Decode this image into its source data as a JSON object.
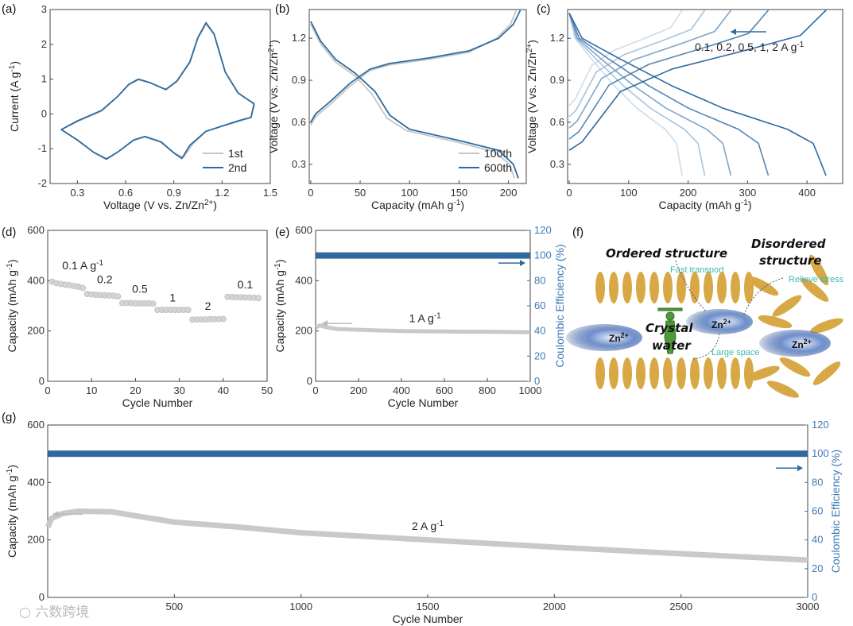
{
  "panel_labels": [
    "(a)",
    "(b)",
    "(c)",
    "(d)",
    "(e)",
    "(f)",
    "(g)"
  ],
  "watermark": "六数跨境",
  "colors": {
    "blue": "#2e6a9e",
    "gray": "#c6c6c6",
    "right_axis": "#3d7ab5",
    "rod": "#d8a846"
  },
  "chart_data": [
    {
      "id": "a",
      "type": "line",
      "title": "",
      "xlabel": {
        "main": "Voltage (V vs. Zn/Zn",
        "sup": "2+",
        "end": ")"
      },
      "ylabel": {
        "main": "Current (A g",
        "sup": "-1",
        "end": ")"
      },
      "xlim": [
        0.13,
        1.5
      ],
      "ylim": [
        -2,
        3
      ],
      "xticks": [
        0.3,
        0.6,
        0.9,
        1.2,
        1.5
      ],
      "xticklabels": [
        "0.3",
        "0.6",
        "0.9",
        "1.2",
        "1.5"
      ],
      "yticks": [
        -2,
        -1,
        0,
        1,
        2,
        3
      ],
      "yticklabels": [
        "-2",
        "-1",
        "0",
        "1",
        "2",
        "3"
      ],
      "legend": "bottom-right",
      "series": [
        {
          "name": "1st",
          "color": "#c6c6c6",
          "points": [
            [
              1.4,
              0.25
            ],
            [
              1.38,
              -0.1
            ],
            [
              1.3,
              -0.22
            ],
            [
              1.2,
              -0.35
            ],
            [
              1.1,
              -0.5
            ],
            [
              1.02,
              -0.85
            ],
            [
              0.96,
              -1.25
            ],
            [
              0.9,
              -1.12
            ],
            [
              0.82,
              -0.82
            ],
            [
              0.72,
              -0.66
            ],
            [
              0.65,
              -0.76
            ],
            [
              0.55,
              -1.1
            ],
            [
              0.48,
              -1.28
            ],
            [
              0.4,
              -1.1
            ],
            [
              0.3,
              -0.75
            ],
            [
              0.2,
              -0.45
            ],
            [
              0.3,
              -0.22
            ],
            [
              0.45,
              0.08
            ],
            [
              0.55,
              0.5
            ],
            [
              0.62,
              0.84
            ],
            [
              0.68,
              0.98
            ],
            [
              0.75,
              0.9
            ],
            [
              0.85,
              0.7
            ],
            [
              0.92,
              0.93
            ],
            [
              1.0,
              1.48
            ],
            [
              1.05,
              2.18
            ],
            [
              1.1,
              2.58
            ],
            [
              1.15,
              2.28
            ],
            [
              1.22,
              1.2
            ],
            [
              1.3,
              0.6
            ],
            [
              1.38,
              0.35
            ],
            [
              1.4,
              0.25
            ]
          ]
        },
        {
          "name": "2nd",
          "color": "#2e6a9e",
          "points": [
            [
              1.4,
              0.3
            ],
            [
              1.38,
              -0.1
            ],
            [
              1.3,
              -0.2
            ],
            [
              1.2,
              -0.35
            ],
            [
              1.1,
              -0.5
            ],
            [
              1.0,
              -0.9
            ],
            [
              0.95,
              -1.28
            ],
            [
              0.9,
              -1.12
            ],
            [
              0.82,
              -0.8
            ],
            [
              0.72,
              -0.65
            ],
            [
              0.65,
              -0.75
            ],
            [
              0.55,
              -1.1
            ],
            [
              0.48,
              -1.3
            ],
            [
              0.4,
              -1.1
            ],
            [
              0.3,
              -0.75
            ],
            [
              0.2,
              -0.45
            ],
            [
              0.3,
              -0.2
            ],
            [
              0.45,
              0.1
            ],
            [
              0.55,
              0.5
            ],
            [
              0.62,
              0.85
            ],
            [
              0.68,
              1.0
            ],
            [
              0.75,
              0.9
            ],
            [
              0.85,
              0.7
            ],
            [
              0.92,
              0.95
            ],
            [
              1.0,
              1.5
            ],
            [
              1.05,
              2.2
            ],
            [
              1.1,
              2.62
            ],
            [
              1.15,
              2.3
            ],
            [
              1.22,
              1.2
            ],
            [
              1.3,
              0.6
            ],
            [
              1.38,
              0.35
            ],
            [
              1.4,
              0.3
            ]
          ]
        }
      ]
    },
    {
      "id": "b",
      "type": "line",
      "xlabel": {
        "main": "Capacity (mAh g",
        "sup": "-1",
        "end": ")"
      },
      "ylabel": {
        "main": "Voltage (V vs. Zn/Zn",
        "sup": "2+",
        "end": ")"
      },
      "xlim": [
        -1.5,
        218
      ],
      "ylim": [
        0.163,
        1.405
      ],
      "xticks": [
        0,
        50,
        100,
        150,
        200
      ],
      "xticklabels": [
        "0",
        "50",
        "100",
        "150",
        "200"
      ],
      "yticks": [
        0.3,
        0.6,
        0.9,
        1.2
      ],
      "yticklabels": [
        "0.3",
        "0.6",
        "0.9",
        "1.2"
      ],
      "legend": "bottom-right",
      "series": [
        {
          "name": "100th",
          "color": "#c6c6c6",
          "charge": [
            [
              0,
              0.58
            ],
            [
              5,
              0.64
            ],
            [
              20,
              0.73
            ],
            [
              40,
              0.86
            ],
            [
              60,
              0.97
            ],
            [
              80,
              1.01
            ],
            [
              120,
              1.05
            ],
            [
              160,
              1.1
            ],
            [
              188,
              1.2
            ],
            [
              202,
              1.3
            ],
            [
              208,
              1.4
            ]
          ],
          "discharge": [
            [
              0,
              1.3
            ],
            [
              10,
              1.16
            ],
            [
              25,
              1.03
            ],
            [
              45,
              0.93
            ],
            [
              62,
              0.8
            ],
            [
              77,
              0.63
            ],
            [
              97,
              0.54
            ],
            [
              147,
              0.46
            ],
            [
              186,
              0.39
            ],
            [
              201,
              0.3
            ],
            [
              206,
              0.2
            ]
          ]
        },
        {
          "name": "600th",
          "color": "#2e6a9e",
          "charge": [
            [
              0,
              0.6
            ],
            [
              5,
              0.66
            ],
            [
              20,
              0.75
            ],
            [
              40,
              0.88
            ],
            [
              60,
              0.98
            ],
            [
              80,
              1.02
            ],
            [
              120,
              1.06
            ],
            [
              160,
              1.11
            ],
            [
              190,
              1.2
            ],
            [
              205,
              1.3
            ],
            [
              212,
              1.4
            ]
          ],
          "discharge": [
            [
              0,
              1.32
            ],
            [
              10,
              1.18
            ],
            [
              25,
              1.05
            ],
            [
              45,
              0.95
            ],
            [
              65,
              0.82
            ],
            [
              80,
              0.65
            ],
            [
              100,
              0.55
            ],
            [
              150,
              0.47
            ],
            [
              190,
              0.4
            ],
            [
              205,
              0.3
            ],
            [
              210,
              0.2
            ]
          ]
        }
      ]
    },
    {
      "id": "c",
      "type": "line",
      "xlabel": {
        "main": "Capacity (mAh g",
        "sup": "-1",
        "end": ")"
      },
      "ylabel": {
        "main": "Voltage (V vs. Zn/Zn",
        "sup": "2+",
        "end": ")"
      },
      "xlim": [
        -2.7,
        460
      ],
      "ylim": [
        0.163,
        1.405
      ],
      "xticks": [
        0,
        100,
        200,
        300,
        400
      ],
      "xticklabels": [
        "0",
        "100",
        "200",
        "300",
        "400"
      ],
      "yticks": [
        0.3,
        0.6,
        0.9,
        1.2
      ],
      "yticklabels": [
        "0.3",
        "0.6",
        "0.9",
        "1.2"
      ],
      "annotation": {
        "main": "0.1, 0.2, 0.5, 1, 2 A g",
        "sup": "-1"
      },
      "charge_profile": [
        [
          0,
          0
        ],
        [
          0.05,
          0.06
        ],
        [
          0.2,
          0.42
        ],
        [
          0.4,
          0.58
        ],
        [
          0.7,
          0.72
        ],
        [
          0.9,
          0.82
        ],
        [
          1,
          1
        ]
      ],
      "discharge_profile": [
        [
          0,
          1.38
        ],
        [
          0.05,
          1.2
        ],
        [
          0.2,
          1.05
        ],
        [
          0.4,
          0.86
        ],
        [
          0.6,
          0.7
        ],
        [
          0.85,
          0.55
        ],
        [
          0.95,
          0.45
        ],
        [
          1,
          0.22
        ]
      ],
      "series": [
        {
          "name": "2 A g-1",
          "capacity": 190,
          "start_voltage": 0.72,
          "color": "#cddcea"
        },
        {
          "name": "1 A g-1",
          "capacity": 228,
          "start_voltage": 0.64,
          "color": "#a8c4dd"
        },
        {
          "name": "0.5 A g-1",
          "capacity": 272,
          "start_voltage": 0.56,
          "color": "#7fa5c8"
        },
        {
          "name": "0.2 A g-1",
          "capacity": 335,
          "start_voltage": 0.48,
          "color": "#5385b2"
        },
        {
          "name": "0.1 A g-1",
          "capacity": 432,
          "start_voltage": 0.4,
          "color": "#2e6a9e"
        }
      ]
    },
    {
      "id": "d",
      "type": "scatter",
      "xlabel": {
        "main": "Cycle Number",
        "sup": "",
        "end": ""
      },
      "ylabel": {
        "main": "Capacity (mAh g",
        "sup": "-1",
        "end": ")"
      },
      "xlim": [
        0,
        50
      ],
      "ylim": [
        0,
        600
      ],
      "xticks": [
        0,
        10,
        20,
        30,
        40,
        50
      ],
      "xticklabels": [
        "0",
        "10",
        "20",
        "30",
        "40",
        "50"
      ],
      "yticks": [
        0,
        200,
        400,
        600
      ],
      "yticklabels": [
        "0",
        "200",
        "400",
        "600"
      ],
      "groups": [
        {
          "label": "0.1 A g",
          "sup": "-1",
          "cycles": [
            1,
            2,
            3,
            4,
            5,
            6,
            7,
            8
          ],
          "values": [
            396,
            390,
            387,
            384,
            382,
            379,
            376,
            371
          ],
          "label_at": [
            8,
            445
          ]
        },
        {
          "label": "0.2",
          "sup": "",
          "cycles": [
            9,
            10,
            11,
            12,
            13,
            14,
            15,
            16
          ],
          "values": [
            347,
            345,
            344,
            343,
            342,
            341,
            340,
            338
          ],
          "label_at": [
            13,
            390
          ]
        },
        {
          "label": "0.5",
          "sup": "",
          "cycles": [
            17,
            18,
            19,
            20,
            21,
            22,
            23,
            24
          ],
          "values": [
            311,
            311,
            311,
            310,
            310,
            310,
            310,
            309
          ],
          "label_at": [
            21,
            352
          ]
        },
        {
          "label": "1",
          "sup": "",
          "cycles": [
            25,
            26,
            27,
            28,
            29,
            30,
            31,
            32
          ],
          "values": [
            284,
            284,
            284,
            284,
            284,
            284,
            284,
            284
          ],
          "label_at": [
            28.5,
            318
          ]
        },
        {
          "label": "2",
          "sup": "",
          "cycles": [
            33,
            34,
            35,
            36,
            37,
            38,
            39,
            40
          ],
          "values": [
            245,
            246,
            246,
            246,
            247,
            247,
            247,
            248
          ],
          "label_at": [
            36.5,
            285
          ]
        },
        {
          "label": "0.1",
          "sup": "",
          "cycles": [
            41,
            42,
            43,
            44,
            45,
            46,
            47,
            48
          ],
          "values": [
            336,
            335,
            334,
            334,
            333,
            333,
            332,
            331
          ],
          "label_at": [
            45,
            370
          ]
        }
      ]
    },
    {
      "id": "e",
      "type": "scatter",
      "xlabel": {
        "main": "Cycle Number",
        "sup": "",
        "end": ""
      },
      "ylabel": {
        "main": "Capacity (mAh g",
        "sup": "-1",
        "end": ")"
      },
      "y2label": {
        "main": "Coulombic Efficiency (%)",
        "sup": "",
        "end": ""
      },
      "xlim": [
        0,
        1000
      ],
      "ylim": [
        0,
        600
      ],
      "y2lim": [
        0,
        120
      ],
      "xticks": [
        0,
        200,
        400,
        600,
        800,
        1000
      ],
      "xticklabels": [
        "0",
        "200",
        "400",
        "600",
        "800",
        "1000"
      ],
      "yticks": [
        0,
        200,
        400,
        600
      ],
      "yticklabels": [
        "0",
        "200",
        "400",
        "600"
      ],
      "y2ticks": [
        0,
        20,
        40,
        60,
        80,
        100,
        120
      ],
      "y2ticklabels": [
        "0",
        "20",
        "40",
        "60",
        "80",
        "100",
        "120"
      ],
      "annotation": {
        "main": "1 A g",
        "sup": "-1",
        "at": [
          510,
          235
        ]
      },
      "capacity": [
        [
          1,
          215
        ],
        [
          20,
          222
        ],
        [
          50,
          215
        ],
        [
          100,
          208
        ],
        [
          200,
          205
        ],
        [
          300,
          202
        ],
        [
          400,
          200
        ],
        [
          500,
          199
        ],
        [
          600,
          198
        ],
        [
          700,
          197
        ],
        [
          800,
          197
        ],
        [
          900,
          196
        ],
        [
          1000,
          195
        ]
      ],
      "efficiency": [
        [
          1,
          100
        ],
        [
          1000,
          100
        ]
      ]
    },
    {
      "id": "g",
      "type": "scatter",
      "xlabel": {
        "main": "Cycle Number",
        "sup": "",
        "end": ""
      },
      "ylabel": {
        "main": "Capacity (mAh g",
        "sup": "-1",
        "end": ")"
      },
      "y2label": {
        "main": "Coulombic Efficiency (%)",
        "sup": "",
        "end": ""
      },
      "xlim": [
        0,
        3000
      ],
      "ylim": [
        0,
        600
      ],
      "y2lim": [
        0,
        120
      ],
      "xticks": [
        500,
        1000,
        1500,
        2000,
        2500,
        3000
      ],
      "xticklabels": [
        "500",
        "1000",
        "1500",
        "2000",
        "2500",
        "3000"
      ],
      "yticks": [
        0,
        200,
        400,
        600
      ],
      "yticklabels": [
        "0",
        "200",
        "400",
        "600"
      ],
      "y2ticks": [
        0,
        20,
        40,
        60,
        80,
        100,
        120
      ],
      "y2ticklabels": [
        "0",
        "20",
        "40",
        "60",
        "80",
        "100",
        "120"
      ],
      "annotation": {
        "main": "2 A g",
        "sup": "-1",
        "at": [
          1500,
          235
        ]
      },
      "capacity": [
        [
          1,
          245
        ],
        [
          15,
          275
        ],
        [
          60,
          292
        ],
        [
          120,
          300
        ],
        [
          250,
          298
        ],
        [
          500,
          262
        ],
        [
          750,
          245
        ],
        [
          1000,
          225
        ],
        [
          1500,
          200
        ],
        [
          2000,
          175
        ],
        [
          2500,
          152
        ],
        [
          3000,
          130
        ]
      ],
      "efficiency": [
        [
          1,
          100
        ],
        [
          3000,
          100
        ]
      ]
    }
  ],
  "diagram_f": {
    "ordered": "Ordered structure",
    "disordered_1": "Disordered",
    "disordered_2": "structure",
    "fast": "Fast transport",
    "relieve": "Relieve stress",
    "crystal_1": "Crystal",
    "crystal_2": "water",
    "large": "Large space",
    "zn": "Zn",
    "zn_sup": "2+"
  }
}
